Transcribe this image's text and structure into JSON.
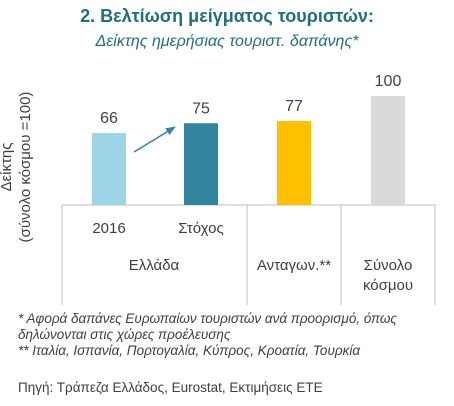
{
  "chart_data": {
    "type": "bar",
    "title": "2. Βελτίωση μείγματος τουριστών:",
    "subtitle": "Δείκτης ημερήσιας τουριστ. δαπάνης*",
    "ylabel_line1": "Δείκτης",
    "ylabel_line2": "(σύνολο κόσμου =100)",
    "categories": [
      "2016",
      "Στόχος",
      "",
      ""
    ],
    "groups": [
      "Ελλάδα",
      "Ανταγων.**",
      "Σύνολο κόσμου"
    ],
    "values": [
      66,
      75,
      77,
      100
    ],
    "data_labels": [
      "66",
      "75",
      "77",
      "100"
    ],
    "bar_colors": [
      "#9dd5e6",
      "#31849b",
      "#ffc000",
      "#d9d9d9"
    ],
    "ylim": [
      0,
      105
    ],
    "grid": false
  },
  "notes": {
    "note1": "* Αφορά δαπάνες Ευρωπαίων τουριστών ανά προορισμό, όπως δηλώνονται στις χώρες προέλευσης",
    "note2": "** Ιταλία, Ισπανία, Πορτογαλία, Κύπρος, Κροατία, Τουρκία"
  },
  "source": "Πηγή: Τράπεζα Ελλάδος, Eurostat, Εκτιμήσεις ΕΤΕ",
  "colors": {
    "title": "#1f6f7f",
    "arrow": "#31849b",
    "text": "#404040",
    "axis": "#bfbfbf"
  }
}
